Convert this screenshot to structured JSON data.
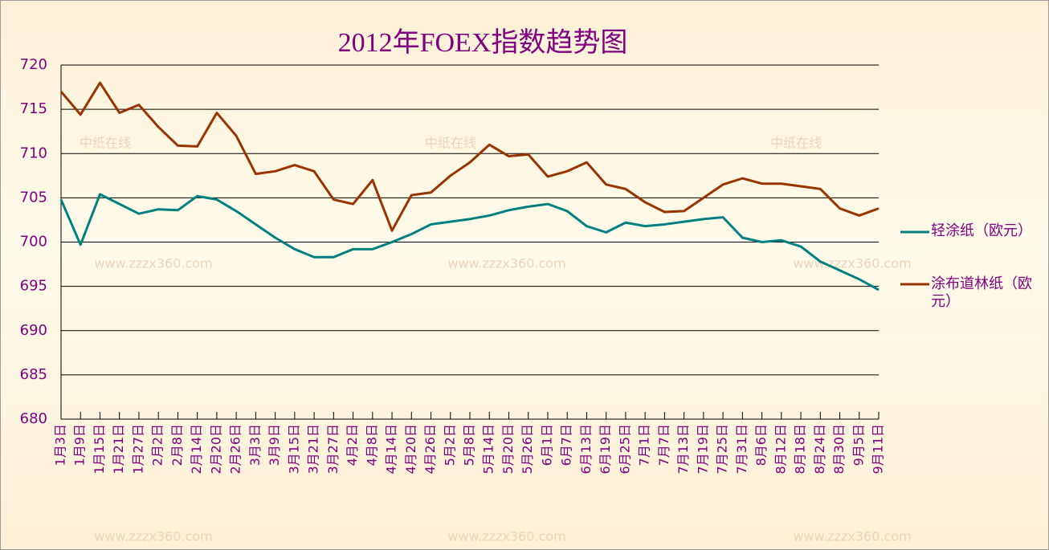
{
  "chart_data": {
    "type": "line",
    "title": "2012年FOEX指数趋势图",
    "categories": [
      "1月3日",
      "1月9日",
      "1月15日",
      "1月21日",
      "1月27日",
      "2月2日",
      "2月8日",
      "2月14日",
      "2月20日",
      "2月26日",
      "3月3日",
      "3月9日",
      "3月15日",
      "3月21日",
      "3月27日",
      "4月2日",
      "4月8日",
      "4月14日",
      "4月20日",
      "4月26日",
      "5月2日",
      "5月8日",
      "5月14日",
      "5月20日",
      "5月26日",
      "6月1日",
      "6月7日",
      "6月13日",
      "6月19日",
      "6月25日",
      "7月1日",
      "7月7日",
      "7月13日",
      "7月19日",
      "7月25日",
      "7月31日",
      "8月6日",
      "8月12日",
      "8月18日",
      "8月24日",
      "8月30日",
      "9月5日",
      "9月11日"
    ],
    "series": [
      {
        "name": "轻涂纸（欧元）",
        "color": "#008080",
        "values": [
          704.8,
          699.7,
          705.4,
          704.3,
          703.2,
          703.7,
          703.6,
          705.2,
          704.8,
          703.5,
          702.0,
          700.5,
          699.2,
          698.3,
          698.3,
          699.2,
          699.2,
          700.0,
          700.9,
          702.0,
          702.3,
          702.6,
          703.0,
          703.6,
          704.0,
          704.3,
          703.5,
          701.8,
          701.1,
          702.2,
          701.8,
          702.0,
          702.3,
          702.6,
          702.8,
          700.5,
          700.0,
          700.2,
          699.5,
          697.8,
          696.8,
          695.8,
          694.6
        ]
      },
      {
        "name": "涂布道林纸（欧元）",
        "color": "#993300",
        "values": [
          717.0,
          714.4,
          718.0,
          714.6,
          715.5,
          713.0,
          710.9,
          710.8,
          714.6,
          712.0,
          707.7,
          708.0,
          708.7,
          708.0,
          704.8,
          704.3,
          707.0,
          701.3,
          705.3,
          705.6,
          707.5,
          709.0,
          711.0,
          709.7,
          709.9,
          707.4,
          708.0,
          709.0,
          706.5,
          706.0,
          704.5,
          703.4,
          703.5,
          705.0,
          706.5,
          707.2,
          706.6,
          706.6,
          706.3,
          706.0,
          703.8,
          703.0,
          703.8
        ]
      }
    ],
    "ylim": [
      680,
      720
    ],
    "yticks": [
      680,
      685,
      690,
      695,
      700,
      705,
      710,
      715,
      720
    ],
    "grid": true,
    "watermark": [
      "中纸在线",
      "www.zzzx360.com"
    ]
  }
}
